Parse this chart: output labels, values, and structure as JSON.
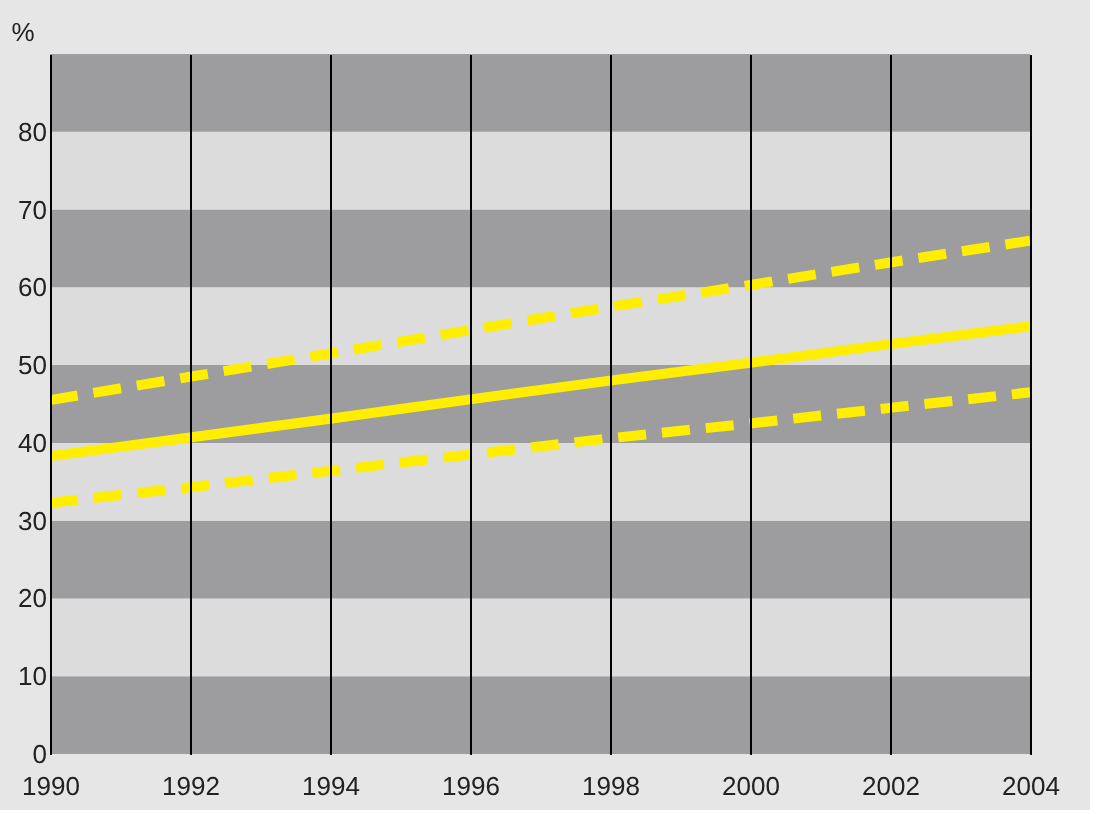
{
  "chart_data": {
    "type": "line",
    "ylabel": "%",
    "x": [
      1990,
      1992,
      1994,
      1996,
      1998,
      2000,
      2002,
      2004
    ],
    "series": [
      {
        "color": "#ffee00",
        "line_style": "dashed",
        "values": [
          45.5,
          48.5,
          51.5,
          54.5,
          57.5,
          60.3,
          63.2,
          66
        ]
      },
      {
        "color": "#ffee00",
        "line_style": "solid",
        "values": [
          38.3,
          40.7,
          43.1,
          45.6,
          48.0,
          50.3,
          52.7,
          55
        ]
      },
      {
        "color": "#ffee00",
        "line_style": "dashed",
        "values": [
          32.3,
          34.3,
          36.4,
          38.5,
          40.6,
          42.5,
          44.5,
          46.5
        ]
      }
    ],
    "bands": [
      {
        "axis": "y",
        "from": 0,
        "to": 10,
        "color": "#9d9d9f"
      },
      {
        "axis": "y",
        "from": 10,
        "to": 20,
        "color": "#dcdcdd"
      },
      {
        "axis": "y",
        "from": 20,
        "to": 30,
        "color": "#9d9d9f"
      },
      {
        "axis": "y",
        "from": 30,
        "to": 40,
        "color": "#dcdcdd"
      },
      {
        "axis": "y",
        "from": 40,
        "to": 50,
        "color": "#9d9d9f"
      },
      {
        "axis": "y",
        "from": 50,
        "to": 60,
        "color": "#dcdcdd"
      },
      {
        "axis": "y",
        "from": 60,
        "to": 70,
        "color": "#9d9d9f"
      },
      {
        "axis": "y",
        "from": 70,
        "to": 80,
        "color": "#dcdcdd"
      },
      {
        "axis": "y",
        "from": 80,
        "to": 90,
        "color": "#9d9d9f"
      }
    ],
    "xlim": [
      1990,
      2004
    ],
    "xticks": [
      1990,
      1992,
      1994,
      1996,
      1998,
      2000,
      2002,
      2004
    ],
    "ylim": [
      0,
      90
    ],
    "yticks": [
      0,
      10,
      20,
      30,
      40,
      50,
      60,
      70,
      80
    ],
    "grid": "x",
    "marker": "none"
  }
}
